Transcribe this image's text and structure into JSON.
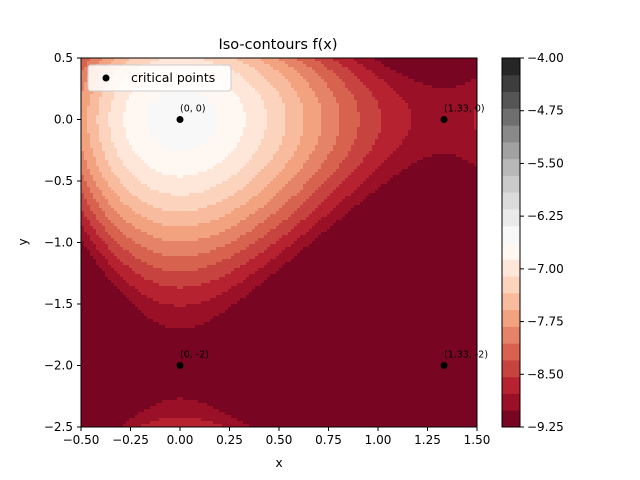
{
  "chart_data": {
    "type": "contour",
    "title": "Iso-contours f(x)",
    "xlabel": "x",
    "ylabel": "y",
    "xlim": [
      -0.5,
      1.5
    ],
    "ylim": [
      -2.5,
      0.5
    ],
    "x_ticks": [
      "−0.50",
      "−0.25",
      "0.00",
      "0.25",
      "0.50",
      "0.75",
      "1.00",
      "1.25",
      "1.50"
    ],
    "y_ticks": [
      "0.5",
      "0.0",
      "−0.5",
      "−1.0",
      "−1.5",
      "−2.0",
      "−2.5"
    ],
    "colorbar": {
      "range": [
        -9.25,
        -4.0
      ],
      "tick_labels": [
        "−4.00",
        "−4.75",
        "−5.50",
        "−6.25",
        "−7.00",
        "−7.75",
        "−8.50",
        "−9.25"
      ],
      "colormap": "RdGy",
      "levels": 22
    },
    "legend": {
      "label": "critical points",
      "position": "upper-left"
    },
    "critical_points": [
      {
        "x": 0,
        "y": 0,
        "label": "(0, 0)"
      },
      {
        "x": 1.3333,
        "y": 0,
        "label": "(1.33, 0)"
      },
      {
        "x": 0,
        "y": -2,
        "label": "(0, -2)"
      },
      {
        "x": 1.3333,
        "y": -2,
        "label": "(1.33, -2)"
      }
    ],
    "grid": false
  }
}
